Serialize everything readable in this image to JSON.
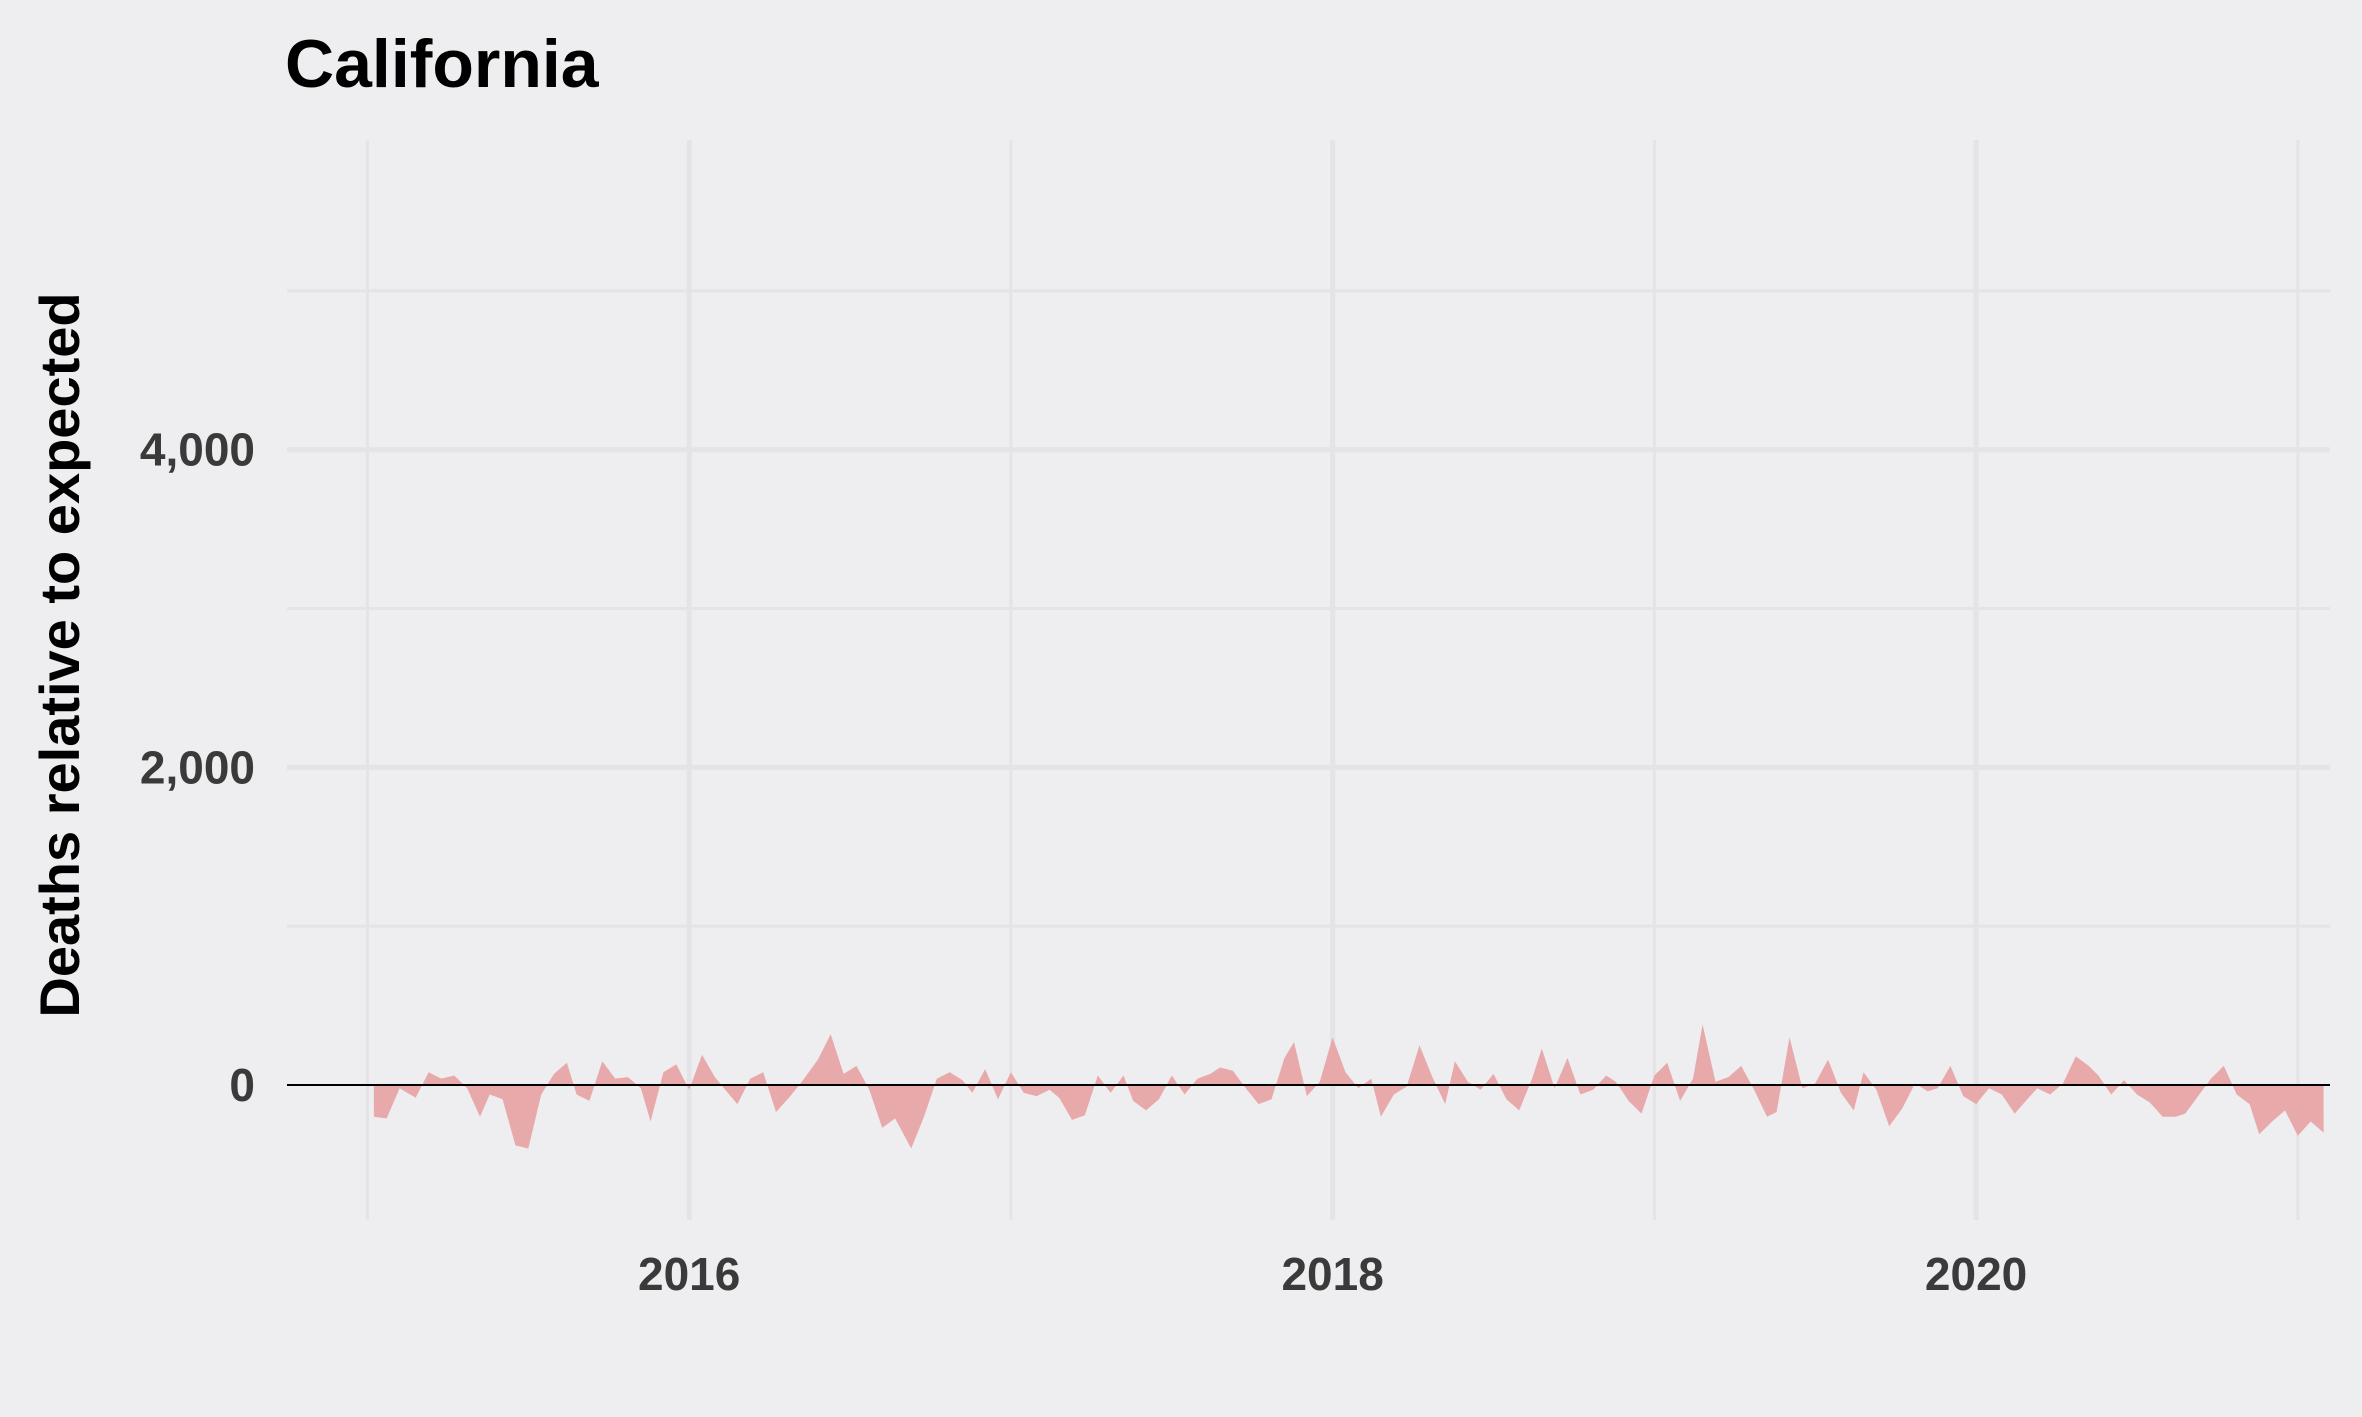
{
  "chart_data": {
    "type": "area",
    "title": "California",
    "xlabel": "",
    "ylabel": "Deaths relative to expected",
    "x_ticks": [
      {
        "value": 2016,
        "label": "2016"
      },
      {
        "value": 2018,
        "label": "2018"
      },
      {
        "value": 2020,
        "label": "2020"
      }
    ],
    "y_ticks": [
      {
        "value": 0,
        "label": "0"
      },
      {
        "value": 2000,
        "label": "2,000"
      },
      {
        "value": 4000,
        "label": "4,000"
      }
    ],
    "xlim": [
      2014.75,
      2021.1
    ],
    "ylim": [
      -850,
      5950
    ],
    "grid": true,
    "colors": {
      "area": "#e8a9ab",
      "line": "#e0282e",
      "zero_line": "#000000",
      "grid": "#e4e3e5"
    },
    "series": [
      {
        "role": "weekly excess deaths (area)",
        "points": [
          [
            2015.02,
            -200
          ],
          [
            2015.06,
            -210
          ],
          [
            2015.1,
            -20
          ],
          [
            2015.15,
            -80
          ],
          [
            2015.19,
            80
          ],
          [
            2015.23,
            40
          ],
          [
            2015.27,
            60
          ],
          [
            2015.31,
            -20
          ],
          [
            2015.35,
            -200
          ],
          [
            2015.38,
            -60
          ],
          [
            2015.42,
            -90
          ],
          [
            2015.46,
            -380
          ],
          [
            2015.5,
            -400
          ],
          [
            2015.54,
            -60
          ],
          [
            2015.58,
            70
          ],
          [
            2015.62,
            140
          ],
          [
            2015.65,
            -60
          ],
          [
            2015.69,
            -100
          ],
          [
            2015.73,
            150
          ],
          [
            2015.77,
            40
          ],
          [
            2015.81,
            50
          ],
          [
            2015.85,
            -20
          ],
          [
            2015.88,
            -230
          ],
          [
            2015.92,
            80
          ],
          [
            2015.96,
            130
          ],
          [
            2016.0,
            -30
          ],
          [
            2016.04,
            190
          ],
          [
            2016.08,
            50
          ],
          [
            2016.12,
            -50
          ],
          [
            2016.15,
            -120
          ],
          [
            2016.19,
            40
          ],
          [
            2016.23,
            80
          ],
          [
            2016.27,
            -170
          ],
          [
            2016.31,
            -80
          ],
          [
            2016.35,
            20
          ],
          [
            2016.4,
            160
          ],
          [
            2016.44,
            320
          ],
          [
            2016.48,
            70
          ],
          [
            2016.52,
            120
          ],
          [
            2016.56,
            -30
          ],
          [
            2016.6,
            -270
          ],
          [
            2016.64,
            -210
          ],
          [
            2016.69,
            -400
          ],
          [
            2016.73,
            -200
          ],
          [
            2016.77,
            40
          ],
          [
            2016.81,
            80
          ],
          [
            2016.85,
            30
          ],
          [
            2016.88,
            -50
          ],
          [
            2016.92,
            100
          ],
          [
            2016.96,
            -90
          ],
          [
            2017.0,
            80
          ],
          [
            2017.04,
            -50
          ],
          [
            2017.08,
            -70
          ],
          [
            2017.12,
            -30
          ],
          [
            2017.15,
            -80
          ],
          [
            2017.19,
            -220
          ],
          [
            2017.23,
            -190
          ],
          [
            2017.27,
            60
          ],
          [
            2017.31,
            -50
          ],
          [
            2017.35,
            60
          ],
          [
            2017.38,
            -100
          ],
          [
            2017.42,
            -160
          ],
          [
            2017.46,
            -90
          ],
          [
            2017.5,
            60
          ],
          [
            2017.54,
            -60
          ],
          [
            2017.58,
            40
          ],
          [
            2017.62,
            70
          ],
          [
            2017.65,
            110
          ],
          [
            2017.69,
            90
          ],
          [
            2017.73,
            -20
          ],
          [
            2017.77,
            -120
          ],
          [
            2017.81,
            -90
          ],
          [
            2017.85,
            170
          ],
          [
            2017.88,
            270
          ],
          [
            2017.92,
            -70
          ],
          [
            2017.96,
            20
          ],
          [
            2018.0,
            300
          ],
          [
            2018.04,
            80
          ],
          [
            2018.08,
            -20
          ],
          [
            2018.12,
            40
          ],
          [
            2018.15,
            -200
          ],
          [
            2018.19,
            -60
          ],
          [
            2018.23,
            -10
          ],
          [
            2018.27,
            250
          ],
          [
            2018.31,
            50
          ],
          [
            2018.35,
            -120
          ],
          [
            2018.38,
            150
          ],
          [
            2018.42,
            20
          ],
          [
            2018.46,
            -30
          ],
          [
            2018.5,
            70
          ],
          [
            2018.54,
            -90
          ],
          [
            2018.58,
            -160
          ],
          [
            2018.62,
            40
          ],
          [
            2018.65,
            230
          ],
          [
            2018.69,
            -20
          ],
          [
            2018.73,
            170
          ],
          [
            2018.77,
            -60
          ],
          [
            2018.81,
            -30
          ],
          [
            2018.85,
            60
          ],
          [
            2018.88,
            20
          ],
          [
            2018.92,
            -100
          ],
          [
            2018.96,
            -180
          ],
          [
            2019.0,
            60
          ],
          [
            2019.04,
            140
          ],
          [
            2019.08,
            -100
          ],
          [
            2019.12,
            40
          ],
          [
            2019.15,
            380
          ],
          [
            2019.19,
            20
          ],
          [
            2019.23,
            50
          ],
          [
            2019.27,
            120
          ],
          [
            2019.31,
            -30
          ],
          [
            2019.35,
            -200
          ],
          [
            2019.38,
            -170
          ],
          [
            2019.42,
            300
          ],
          [
            2019.46,
            -20
          ],
          [
            2019.5,
            10
          ],
          [
            2019.54,
            160
          ],
          [
            2019.58,
            -50
          ],
          [
            2019.62,
            -160
          ],
          [
            2019.65,
            80
          ],
          [
            2019.69,
            -30
          ],
          [
            2019.73,
            -260
          ],
          [
            2019.77,
            -150
          ],
          [
            2019.81,
            10
          ],
          [
            2019.85,
            -40
          ],
          [
            2019.88,
            -20
          ],
          [
            2019.92,
            120
          ],
          [
            2019.96,
            -70
          ],
          [
            2020.0,
            -120
          ],
          [
            2020.04,
            -20
          ],
          [
            2020.08,
            -60
          ],
          [
            2020.12,
            -180
          ],
          [
            2020.15,
            -110
          ],
          [
            2020.19,
            -20
          ],
          [
            2020.23,
            -60
          ],
          [
            2020.27,
            10
          ],
          [
            2020.31,
            180
          ],
          [
            2020.35,
            120
          ],
          [
            2020.38,
            60
          ],
          [
            2020.42,
            -60
          ],
          [
            2020.46,
            30
          ],
          [
            2020.5,
            -60
          ],
          [
            2020.54,
            -110
          ],
          [
            2020.58,
            -200
          ],
          [
            2020.62,
            -200
          ],
          [
            2020.65,
            -180
          ],
          [
            2020.69,
            -70
          ],
          [
            2020.73,
            40
          ],
          [
            2020.77,
            120
          ],
          [
            2020.81,
            -60
          ],
          [
            2020.85,
            -120
          ],
          [
            2020.88,
            -310
          ],
          [
            2020.92,
            -230
          ],
          [
            2020.96,
            -160
          ],
          [
            2021.0,
            -320
          ],
          [
            2021.04,
            -230
          ],
          [
            2021.08,
            -300
          ]
        ]
      }
    ]
  }
}
